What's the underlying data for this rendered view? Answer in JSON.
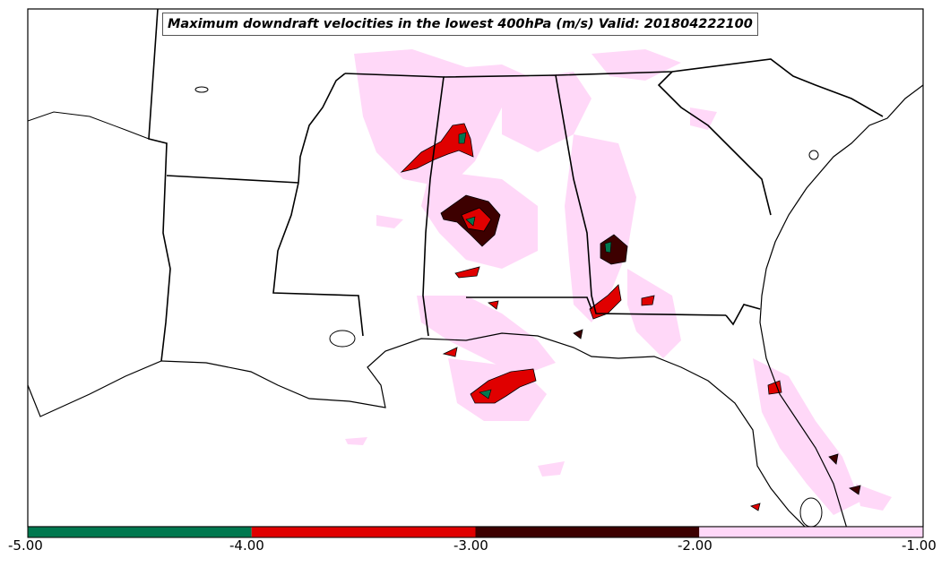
{
  "map": {
    "title": "Maximum downdraft velocities in the lowest 400hPa (m/s) Valid: 201804222100"
  },
  "colorbar": {
    "bins": [
      {
        "min": -5.0,
        "max": -4.0,
        "color": "#00784f"
      },
      {
        "min": -4.0,
        "max": -3.0,
        "color": "#e00000"
      },
      {
        "min": -3.0,
        "max": -2.0,
        "color": "#3d0000"
      },
      {
        "min": -2.0,
        "max": -1.0,
        "color": "#ffd8f8"
      }
    ],
    "tick_labels": [
      "-5.00",
      "-4.00",
      "-3.00",
      "-2.00",
      "-1.00"
    ]
  }
}
